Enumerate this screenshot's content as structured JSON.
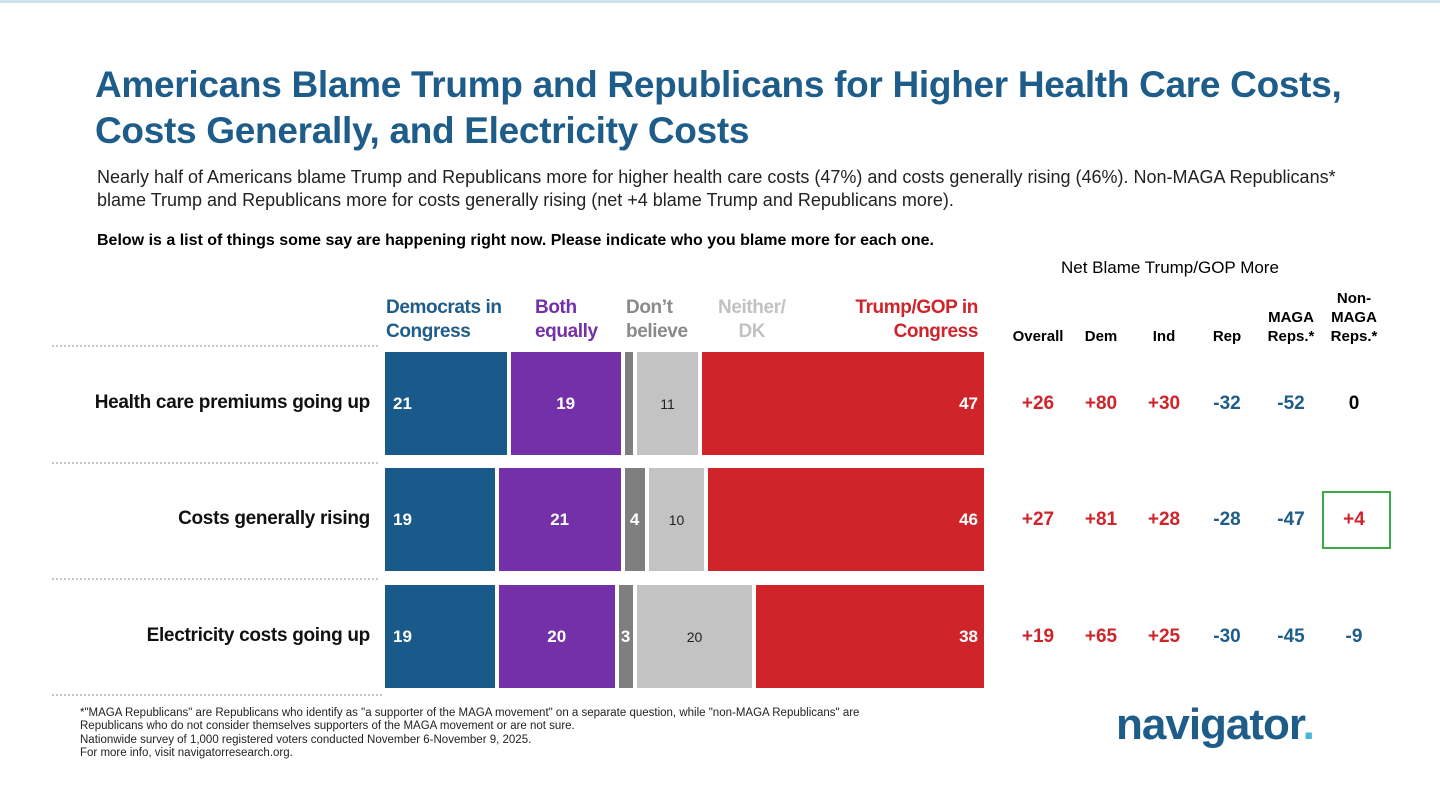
{
  "page": {
    "title": "Americans Blame Trump and Republicans for Higher Health Care Costs, Costs Generally, and Electricity Costs",
    "subtitle": "Nearly half of Americans blame Trump and Republicans more for higher health care costs (47%) and costs generally rising (46%). Non-MAGA Republicans* blame Trump and Republicans more for costs generally rising (net +4 blame Trump and Republicans more).",
    "question": "Below is a list of things some say are happening right now. Please indicate who you blame more for each one.",
    "net_header": "Net Blame Trump/GOP More",
    "footnote": [
      "*\"MAGA Republicans\" are Republicans who identify as \"a supporter of the MAGA movement\" on a separate question, while \"non-MAGA Republicans\" are",
      "Republicans who do not consider themselves supporters of the MAGA movement or are not sure.",
      "Nationwide survey of 1,000 registered voters conducted November 6-November 9, 2025.",
      "For more info, visit navigatorresearch.org."
    ],
    "logo": "navigator",
    "logo_dot": "."
  },
  "chart_data": {
    "type": "bar",
    "orientation": "horizontal-stacked",
    "categories": [
      "Health care premiums going up",
      "Costs generally rising",
      "Electricity costs going up"
    ],
    "series": [
      {
        "name": "Democrats in Congress",
        "legend": [
          "Democrats in",
          "Congress"
        ],
        "color": "#1a5a8a",
        "label_color": "#1e5c8a",
        "values": [
          21,
          19,
          19
        ]
      },
      {
        "name": "Both equally",
        "legend": [
          "Both",
          "equally"
        ],
        "color": "#7330a8",
        "label_color": "#7330a8",
        "values": [
          19,
          21,
          20
        ]
      },
      {
        "name": "Don't believe",
        "legend": [
          "Don’t",
          "believe"
        ],
        "color": "#7f7f7f",
        "label_color": "#8a8a8a",
        "values": [
          2,
          4,
          3
        ],
        "labels": [
          "",
          "4",
          "3"
        ]
      },
      {
        "name": "Neither/DK",
        "legend": [
          "Neither/",
          "DK"
        ],
        "color": "#c3c3c3",
        "label_color": "#c2c2c2",
        "values": [
          11,
          10,
          20
        ]
      },
      {
        "name": "Trump/GOP in Congress",
        "legend": [
          "Trump/GOP in",
          "Congress"
        ],
        "color": "#d0242b",
        "label_color": "#d0242b",
        "values": [
          47,
          46,
          38
        ]
      }
    ],
    "net": {
      "columns": [
        {
          "key": "overall",
          "label": [
            "Overall"
          ]
        },
        {
          "key": "dem",
          "label": [
            "Dem"
          ]
        },
        {
          "key": "ind",
          "label": [
            "Ind"
          ]
        },
        {
          "key": "rep",
          "label": [
            "Rep"
          ]
        },
        {
          "key": "maga",
          "label": [
            "MAGA",
            "Reps.*"
          ]
        },
        {
          "key": "nonmaga",
          "label": [
            "Non-",
            "MAGA",
            "Reps.*"
          ]
        }
      ],
      "rows": [
        [
          "+26",
          "+80",
          "+30",
          "-32",
          "-52",
          "0"
        ],
        [
          "+27",
          "+81",
          "+28",
          "-28",
          "-47",
          "+4"
        ],
        [
          "+19",
          "+65",
          "+25",
          "-30",
          "-45",
          "-9"
        ]
      ],
      "colors": {
        "positive": "#d0242b",
        "negative": "#1e5c8a",
        "zero": "#000000"
      },
      "highlight": {
        "row": 1,
        "col": 5,
        "color": "#3aa94a"
      }
    }
  }
}
